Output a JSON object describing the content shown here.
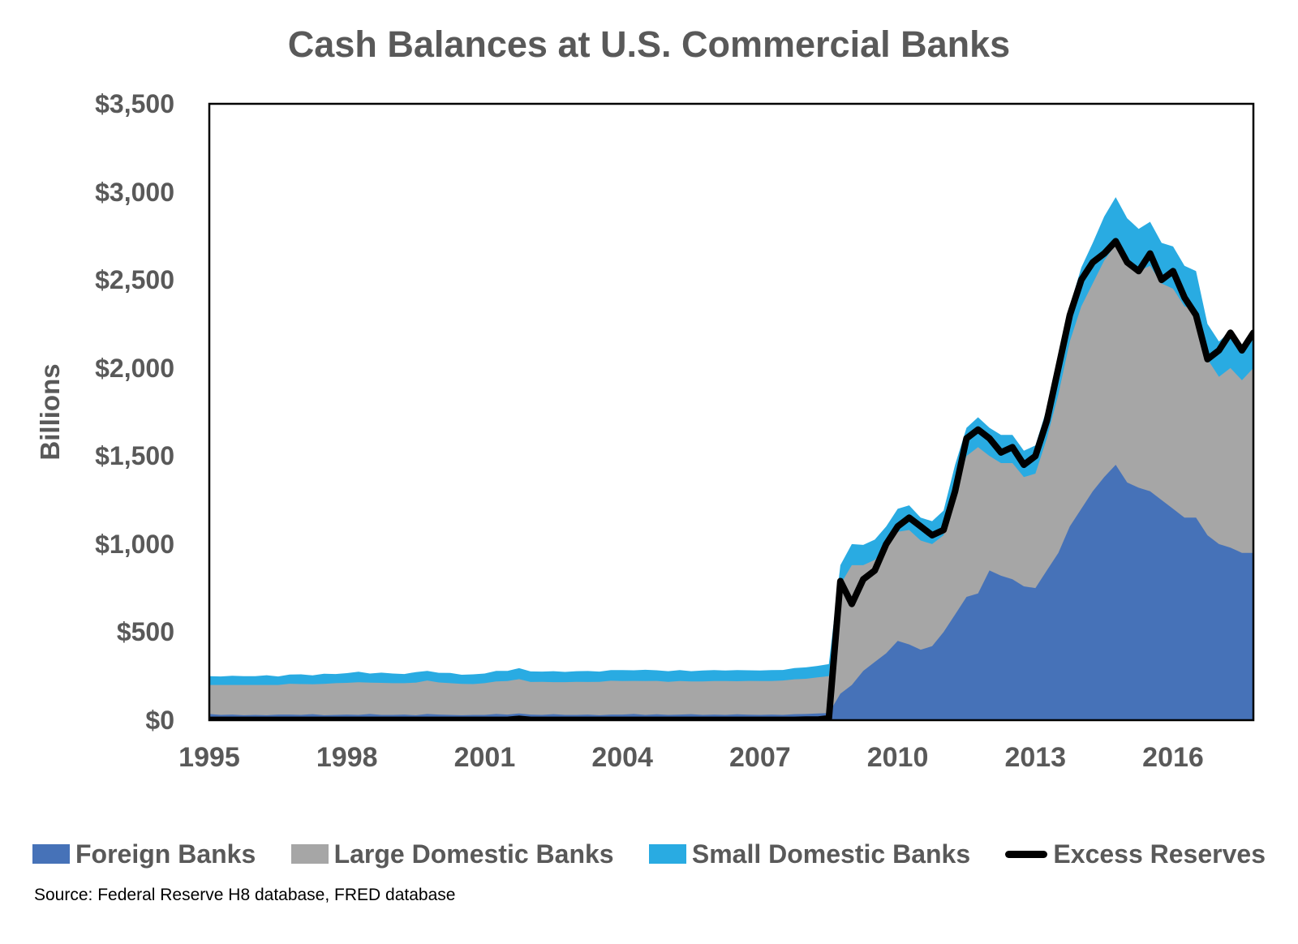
{
  "source_note": "Source: Federal Reserve H8 database, FRED database",
  "colors": {
    "foreign_banks": "#4672b8",
    "large_domestic_banks": "#a6a6a6",
    "small_domestic_banks": "#29abe2",
    "excess_reserves": "#000000",
    "axis": "#000000",
    "text": "#595959"
  },
  "chart_data": {
    "type": "area",
    "stacked": true,
    "title": "Cash Balances at U.S. Commercial Banks",
    "xlabel": "",
    "ylabel": "Billions",
    "ylim": [
      0,
      3500
    ],
    "xlim": [
      1995,
      2017.75
    ],
    "grid": false,
    "legend_position": "bottom",
    "y_ticks": [
      "$0",
      "$500",
      "$1,000",
      "$1,500",
      "$2,000",
      "$2,500",
      "$3,000",
      "$3,500"
    ],
    "x_tick_values": [
      1995,
      1998,
      2001,
      2004,
      2007,
      2010,
      2013,
      2016
    ],
    "x_tick_labels": [
      "1995",
      "1998",
      "2001",
      "2004",
      "2007",
      "2010",
      "2013",
      "2016"
    ],
    "x": [
      1995,
      1995.25,
      1995.5,
      1995.75,
      1996,
      1996.25,
      1996.5,
      1996.75,
      1997,
      1997.25,
      1997.5,
      1997.75,
      1998,
      1998.25,
      1998.5,
      1998.75,
      1999,
      1999.25,
      1999.5,
      1999.75,
      2000,
      2000.25,
      2000.5,
      2000.75,
      2001,
      2001.25,
      2001.5,
      2001.75,
      2002,
      2002.25,
      2002.5,
      2002.75,
      2003,
      2003.25,
      2003.5,
      2003.75,
      2004,
      2004.25,
      2004.5,
      2004.75,
      2005,
      2005.25,
      2005.5,
      2005.75,
      2006,
      2006.25,
      2006.5,
      2006.75,
      2007,
      2007.25,
      2007.5,
      2007.75,
      2008,
      2008.25,
      2008.5,
      2008.75,
      2009,
      2009.25,
      2009.5,
      2009.75,
      2010,
      2010.25,
      2010.5,
      2010.75,
      2011,
      2011.25,
      2011.5,
      2011.75,
      2012,
      2012.25,
      2012.5,
      2012.75,
      2013,
      2013.25,
      2013.5,
      2013.75,
      2014,
      2014.25,
      2014.5,
      2014.75,
      2015,
      2015.25,
      2015.5,
      2015.75,
      2016,
      2016.25,
      2016.5,
      2016.75,
      2017,
      2017.25,
      2017.5,
      2017.75
    ],
    "series": [
      {
        "name": "Foreign Banks",
        "type": "area",
        "color": "#4672b8",
        "values": [
          35,
          30,
          32,
          28,
          30,
          28,
          32,
          32,
          30,
          34,
          28,
          30,
          32,
          30,
          35,
          30,
          30,
          32,
          28,
          35,
          32,
          30,
          28,
          30,
          30,
          35,
          32,
          38,
          32,
          30,
          34,
          30,
          30,
          32,
          28,
          32,
          32,
          35,
          30,
          33,
          30,
          32,
          34,
          30,
          32,
          30,
          33,
          31,
          30,
          32,
          30,
          34,
          35,
          38,
          40,
          150,
          200,
          280,
          330,
          380,
          450,
          430,
          400,
          420,
          500,
          600,
          700,
          720,
          850,
          820,
          800,
          760,
          750,
          850,
          950,
          1100,
          1200,
          1300,
          1380,
          1450,
          1350,
          1320,
          1300,
          1250,
          1200,
          1150,
          1150,
          1050,
          1000,
          980,
          950,
          950
        ]
      },
      {
        "name": "Large Domestic Banks",
        "type": "area",
        "color": "#a6a6a6",
        "values": [
          165,
          170,
          168,
          172,
          170,
          172,
          168,
          175,
          175,
          170,
          178,
          180,
          180,
          185,
          178,
          182,
          180,
          178,
          185,
          190,
          182,
          180,
          178,
          175,
          180,
          185,
          190,
          195,
          185,
          188,
          182,
          186,
          188,
          185,
          190,
          192,
          190,
          188,
          192,
          190,
          188,
          190,
          186,
          190,
          190,
          192,
          188,
          192,
          192,
          190,
          195,
          198,
          200,
          205,
          210,
          620,
          680,
          600,
          580,
          600,
          620,
          650,
          620,
          580,
          550,
          700,
          800,
          830,
          650,
          640,
          660,
          620,
          650,
          750,
          900,
          1050,
          1150,
          1180,
          1230,
          1250,
          1250,
          1230,
          1280,
          1230,
          1250,
          1200,
          1180,
          1000,
          950,
          1020,
          980,
          1050
        ]
      },
      {
        "name": "Small Domestic Banks",
        "type": "area",
        "color": "#29abe2",
        "values": [
          50,
          48,
          52,
          50,
          50,
          55,
          48,
          52,
          55,
          50,
          58,
          52,
          55,
          60,
          52,
          58,
          55,
          52,
          60,
          55,
          55,
          58,
          52,
          55,
          55,
          60,
          58,
          62,
          60,
          58,
          62,
          58,
          60,
          62,
          58,
          60,
          62,
          60,
          64,
          60,
          60,
          62,
          58,
          62,
          62,
          60,
          63,
          60,
          60,
          62,
          60,
          64,
          65,
          65,
          68,
          110,
          120,
          115,
          115,
          120,
          130,
          140,
          130,
          130,
          140,
          150,
          160,
          170,
          160,
          160,
          160,
          150,
          160,
          170,
          180,
          200,
          220,
          230,
          250,
          270,
          250,
          240,
          250,
          230,
          240,
          230,
          220,
          200,
          200,
          210,
          200,
          220
        ]
      },
      {
        "name": "Excess Reserves",
        "type": "line",
        "color": "#000000",
        "values": [
          2,
          2,
          2,
          2,
          2,
          2,
          2,
          2,
          2,
          2,
          2,
          2,
          2,
          2,
          2,
          2,
          2,
          2,
          2,
          2,
          2,
          2,
          2,
          2,
          2,
          2,
          2,
          8,
          2,
          2,
          2,
          2,
          2,
          2,
          2,
          2,
          2,
          2,
          2,
          2,
          2,
          2,
          2,
          2,
          2,
          2,
          2,
          2,
          2,
          2,
          2,
          2,
          3,
          3,
          10,
          790,
          660,
          800,
          850,
          1000,
          1100,
          1150,
          1100,
          1050,
          1080,
          1300,
          1600,
          1650,
          1600,
          1520,
          1550,
          1450,
          1500,
          1700,
          2000,
          2300,
          2500,
          2600,
          2650,
          2720,
          2600,
          2550,
          2650,
          2500,
          2550,
          2400,
          2300,
          2050,
          2100,
          2200,
          2100,
          2200
        ]
      }
    ]
  }
}
